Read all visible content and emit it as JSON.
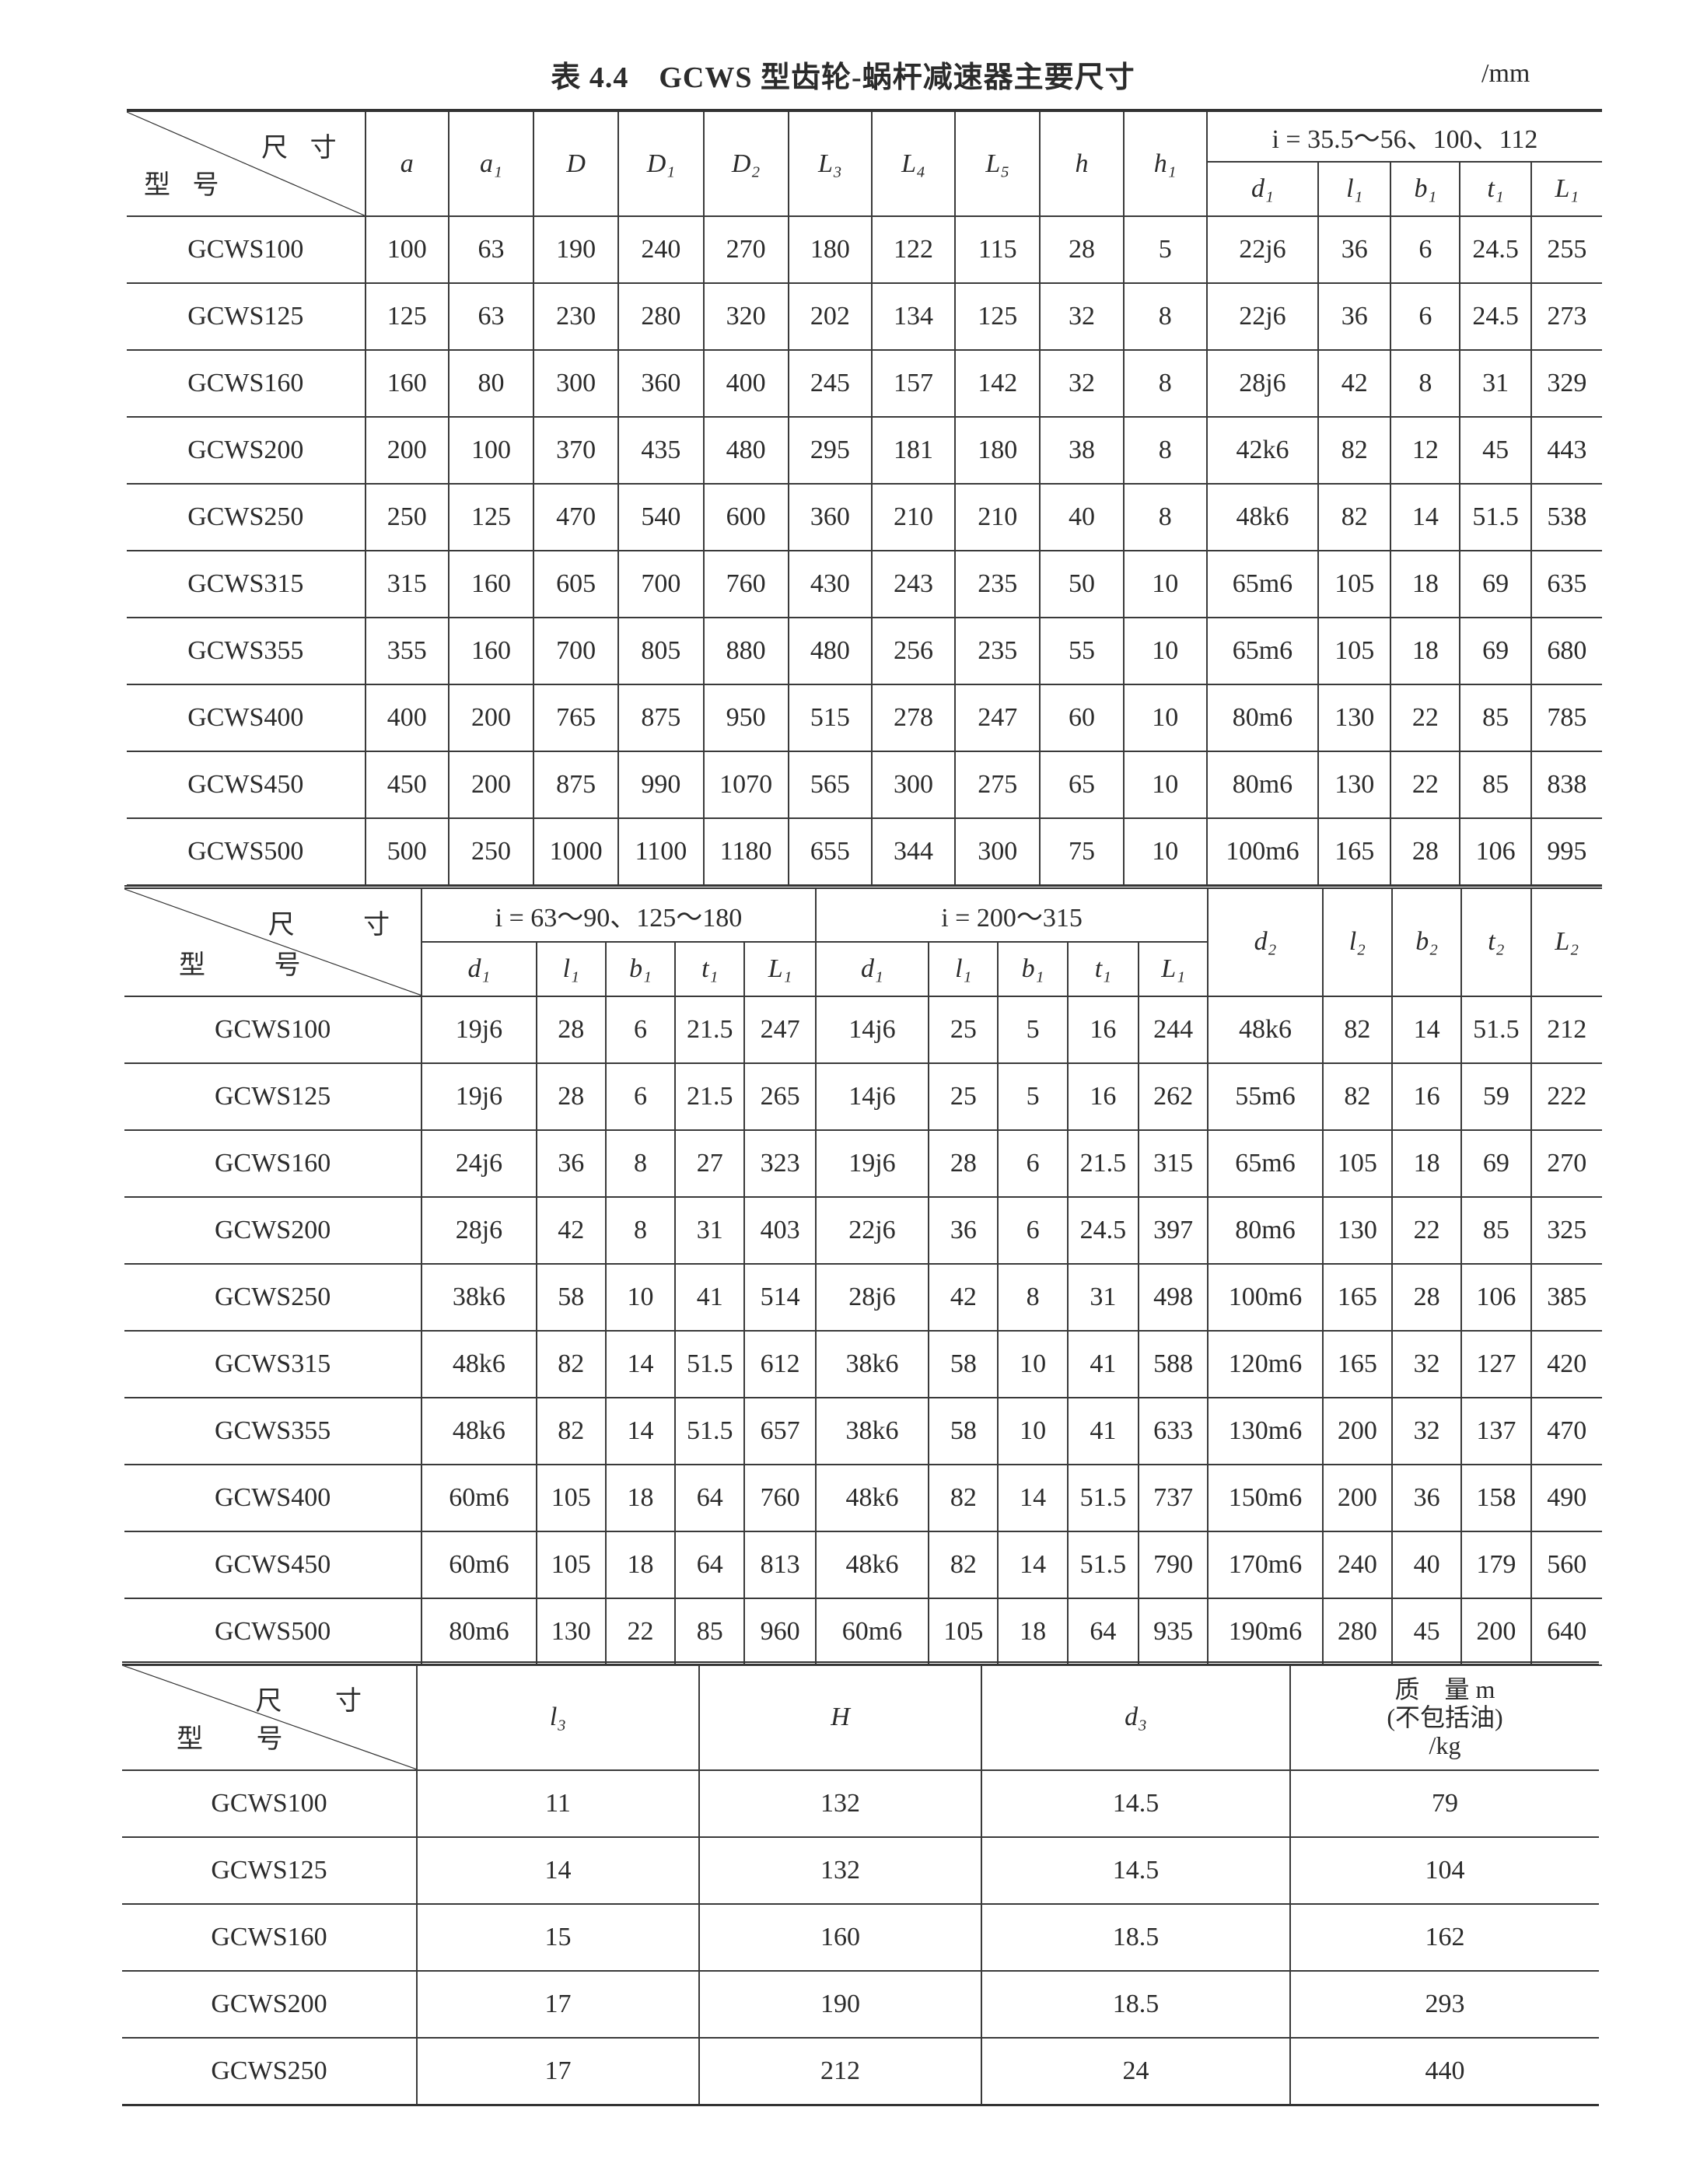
{
  "title": "表 4.4　GCWS 型齿轮-蜗杆减速器主要尺寸",
  "unit": "/mm",
  "corner": {
    "top": "尺 寸",
    "bottom": "型 号"
  },
  "table1": {
    "group_label": "i = 35.5～56、100、112",
    "columns": [
      "a",
      "a₁",
      "D",
      "D₁",
      "D₂",
      "L₃",
      "L₄",
      "L₅",
      "h",
      "h₁"
    ],
    "group_columns": [
      "d₁",
      "l₁",
      "b₁",
      "t₁",
      "L₁"
    ],
    "rows": [
      [
        "GCWS100",
        "100",
        "63",
        "190",
        "240",
        "270",
        "180",
        "122",
        "115",
        "28",
        "5",
        "22j6",
        "36",
        "6",
        "24.5",
        "255"
      ],
      [
        "GCWS125",
        "125",
        "63",
        "230",
        "280",
        "320",
        "202",
        "134",
        "125",
        "32",
        "8",
        "22j6",
        "36",
        "6",
        "24.5",
        "273"
      ],
      [
        "GCWS160",
        "160",
        "80",
        "300",
        "360",
        "400",
        "245",
        "157",
        "142",
        "32",
        "8",
        "28j6",
        "42",
        "8",
        "31",
        "329"
      ],
      [
        "GCWS200",
        "200",
        "100",
        "370",
        "435",
        "480",
        "295",
        "181",
        "180",
        "38",
        "8",
        "42k6",
        "82",
        "12",
        "45",
        "443"
      ],
      [
        "GCWS250",
        "250",
        "125",
        "470",
        "540",
        "600",
        "360",
        "210",
        "210",
        "40",
        "8",
        "48k6",
        "82",
        "14",
        "51.5",
        "538"
      ],
      [
        "GCWS315",
        "315",
        "160",
        "605",
        "700",
        "760",
        "430",
        "243",
        "235",
        "50",
        "10",
        "65m6",
        "105",
        "18",
        "69",
        "635"
      ],
      [
        "GCWS355",
        "355",
        "160",
        "700",
        "805",
        "880",
        "480",
        "256",
        "235",
        "55",
        "10",
        "65m6",
        "105",
        "18",
        "69",
        "680"
      ],
      [
        "GCWS400",
        "400",
        "200",
        "765",
        "875",
        "950",
        "515",
        "278",
        "247",
        "60",
        "10",
        "80m6",
        "130",
        "22",
        "85",
        "785"
      ],
      [
        "GCWS450",
        "450",
        "200",
        "875",
        "990",
        "1070",
        "565",
        "300",
        "275",
        "65",
        "10",
        "80m6",
        "130",
        "22",
        "85",
        "838"
      ],
      [
        "GCWS500",
        "500",
        "250",
        "1000",
        "1100",
        "1180",
        "655",
        "344",
        "300",
        "75",
        "10",
        "100m6",
        "165",
        "28",
        "106",
        "995"
      ]
    ]
  },
  "table2": {
    "group1_label": "i = 63～90、125～180",
    "group2_label": "i = 200～315",
    "group_columns": [
      "d₁",
      "l₁",
      "b₁",
      "t₁",
      "L₁"
    ],
    "columns": [
      "d₂",
      "l₂",
      "b₂",
      "t₂",
      "L₂"
    ],
    "rows": [
      [
        "GCWS100",
        "19j6",
        "28",
        "6",
        "21.5",
        "247",
        "14j6",
        "25",
        "5",
        "16",
        "244",
        "48k6",
        "82",
        "14",
        "51.5",
        "212"
      ],
      [
        "GCWS125",
        "19j6",
        "28",
        "6",
        "21.5",
        "265",
        "14j6",
        "25",
        "5",
        "16",
        "262",
        "55m6",
        "82",
        "16",
        "59",
        "222"
      ],
      [
        "GCWS160",
        "24j6",
        "36",
        "8",
        "27",
        "323",
        "19j6",
        "28",
        "6",
        "21.5",
        "315",
        "65m6",
        "105",
        "18",
        "69",
        "270"
      ],
      [
        "GCWS200",
        "28j6",
        "42",
        "8",
        "31",
        "403",
        "22j6",
        "36",
        "6",
        "24.5",
        "397",
        "80m6",
        "130",
        "22",
        "85",
        "325"
      ],
      [
        "GCWS250",
        "38k6",
        "58",
        "10",
        "41",
        "514",
        "28j6",
        "42",
        "8",
        "31",
        "498",
        "100m6",
        "165",
        "28",
        "106",
        "385"
      ],
      [
        "GCWS315",
        "48k6",
        "82",
        "14",
        "51.5",
        "612",
        "38k6",
        "58",
        "10",
        "41",
        "588",
        "120m6",
        "165",
        "32",
        "127",
        "420"
      ],
      [
        "GCWS355",
        "48k6",
        "82",
        "14",
        "51.5",
        "657",
        "38k6",
        "58",
        "10",
        "41",
        "633",
        "130m6",
        "200",
        "32",
        "137",
        "470"
      ],
      [
        "GCWS400",
        "60m6",
        "105",
        "18",
        "64",
        "760",
        "48k6",
        "82",
        "14",
        "51.5",
        "737",
        "150m6",
        "200",
        "36",
        "158",
        "490"
      ],
      [
        "GCWS450",
        "60m6",
        "105",
        "18",
        "64",
        "813",
        "48k6",
        "82",
        "14",
        "51.5",
        "790",
        "170m6",
        "240",
        "40",
        "179",
        "560"
      ],
      [
        "GCWS500",
        "80m6",
        "130",
        "22",
        "85",
        "960",
        "60m6",
        "105",
        "18",
        "64",
        "935",
        "190m6",
        "280",
        "45",
        "200",
        "640"
      ]
    ]
  },
  "table3": {
    "columns": [
      "l₃",
      "H",
      "d₃"
    ],
    "mass_header": {
      "line1": "质　量 m",
      "line2": "(不包括油)",
      "line3": "/kg"
    },
    "rows": [
      [
        "GCWS100",
        "11",
        "132",
        "14.5",
        "79"
      ],
      [
        "GCWS125",
        "14",
        "132",
        "14.5",
        "104"
      ],
      [
        "GCWS160",
        "15",
        "160",
        "18.5",
        "162"
      ],
      [
        "GCWS200",
        "17",
        "190",
        "18.5",
        "293"
      ],
      [
        "GCWS250",
        "17",
        "212",
        "24",
        "440"
      ]
    ]
  }
}
